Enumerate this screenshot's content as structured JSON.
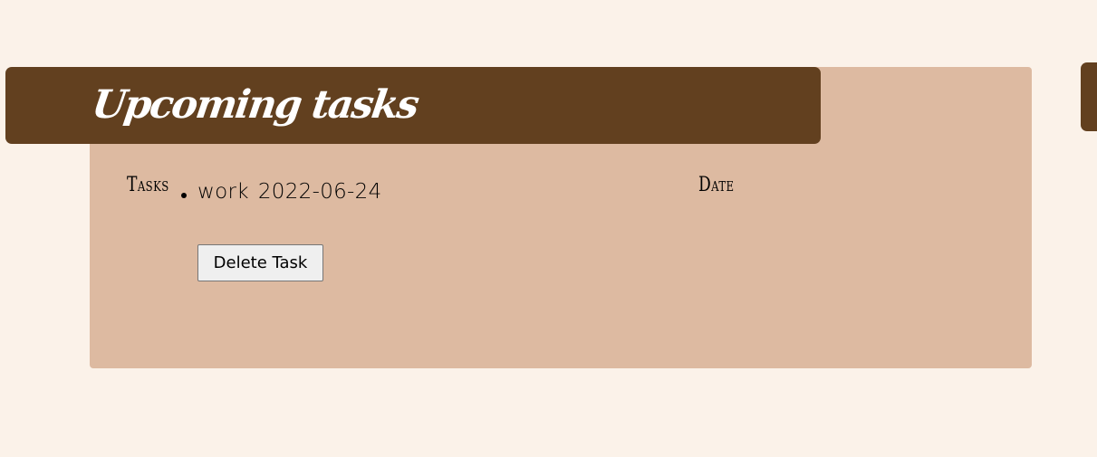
{
  "header": {
    "title": "Upcoming tasks"
  },
  "table": {
    "tasks_header": "Tasks",
    "date_header": "Date"
  },
  "tasks": [
    {
      "name": "work",
      "date": "2022-06-24"
    }
  ],
  "actions": {
    "delete_label": "Delete Task"
  },
  "colors": {
    "page_background": "#fbf2e9",
    "card_background": "#ddbaa1",
    "header_background": "#62401f",
    "header_text": "#ffffff"
  }
}
